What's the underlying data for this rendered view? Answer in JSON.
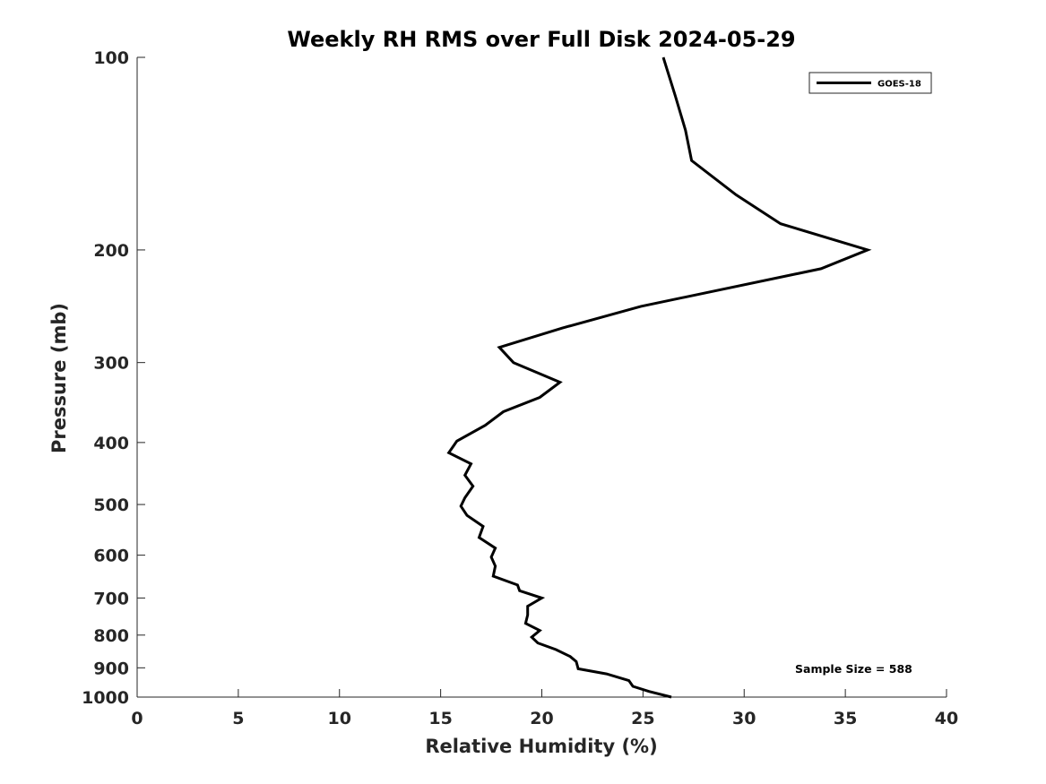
{
  "chart_data": {
    "type": "line",
    "title": "Weekly RH RMS over Full Disk 2024-05-29",
    "xlabel": "Relative Humidity (%)",
    "ylabel": "Pressure (mb)",
    "xlim": [
      0,
      40
    ],
    "ylim": [
      100,
      1000
    ],
    "y_scale": "log",
    "y_reversed": true,
    "grid": false,
    "legend_position": "top-right",
    "xticks": [
      0,
      5,
      10,
      15,
      20,
      25,
      30,
      35,
      40
    ],
    "yticks": [
      100,
      200,
      300,
      400,
      500,
      600,
      700,
      800,
      900,
      1000
    ],
    "annotation": "Sample Size = 588",
    "series": [
      {
        "name": "GOES-18",
        "color": "#000000",
        "points": [
          [
            26.0,
            100
          ],
          [
            26.6,
            115
          ],
          [
            27.1,
            130
          ],
          [
            27.4,
            145
          ],
          [
            29.6,
            164
          ],
          [
            31.8,
            182
          ],
          [
            36.1,
            200
          ],
          [
            33.8,
            214
          ],
          [
            24.9,
            245
          ],
          [
            21.0,
            265
          ],
          [
            17.9,
            284
          ],
          [
            18.6,
            300
          ],
          [
            20.9,
            322
          ],
          [
            19.9,
            340
          ],
          [
            18.1,
            358
          ],
          [
            17.2,
            376
          ],
          [
            15.8,
            398
          ],
          [
            15.4,
            415
          ],
          [
            16.5,
            432
          ],
          [
            16.2,
            450
          ],
          [
            16.6,
            468
          ],
          [
            16.2,
            488
          ],
          [
            16.0,
            503
          ],
          [
            16.3,
            520
          ],
          [
            17.1,
            541
          ],
          [
            16.9,
            563
          ],
          [
            17.7,
            585
          ],
          [
            17.5,
            604
          ],
          [
            17.7,
            624
          ],
          [
            17.6,
            647
          ],
          [
            18.8,
            668
          ],
          [
            18.9,
            682
          ],
          [
            20.0,
            700
          ],
          [
            19.3,
            721
          ],
          [
            19.3,
            744
          ],
          [
            19.2,
            767
          ],
          [
            19.9,
            787
          ],
          [
            19.5,
            806
          ],
          [
            19.8,
            823
          ],
          [
            20.7,
            843
          ],
          [
            21.4,
            864
          ],
          [
            21.7,
            880
          ],
          [
            21.8,
            903
          ],
          [
            23.2,
            920
          ],
          [
            24.3,
            942
          ],
          [
            24.5,
            962
          ],
          [
            25.3,
            980
          ],
          [
            26.4,
            1000
          ]
        ]
      }
    ]
  }
}
